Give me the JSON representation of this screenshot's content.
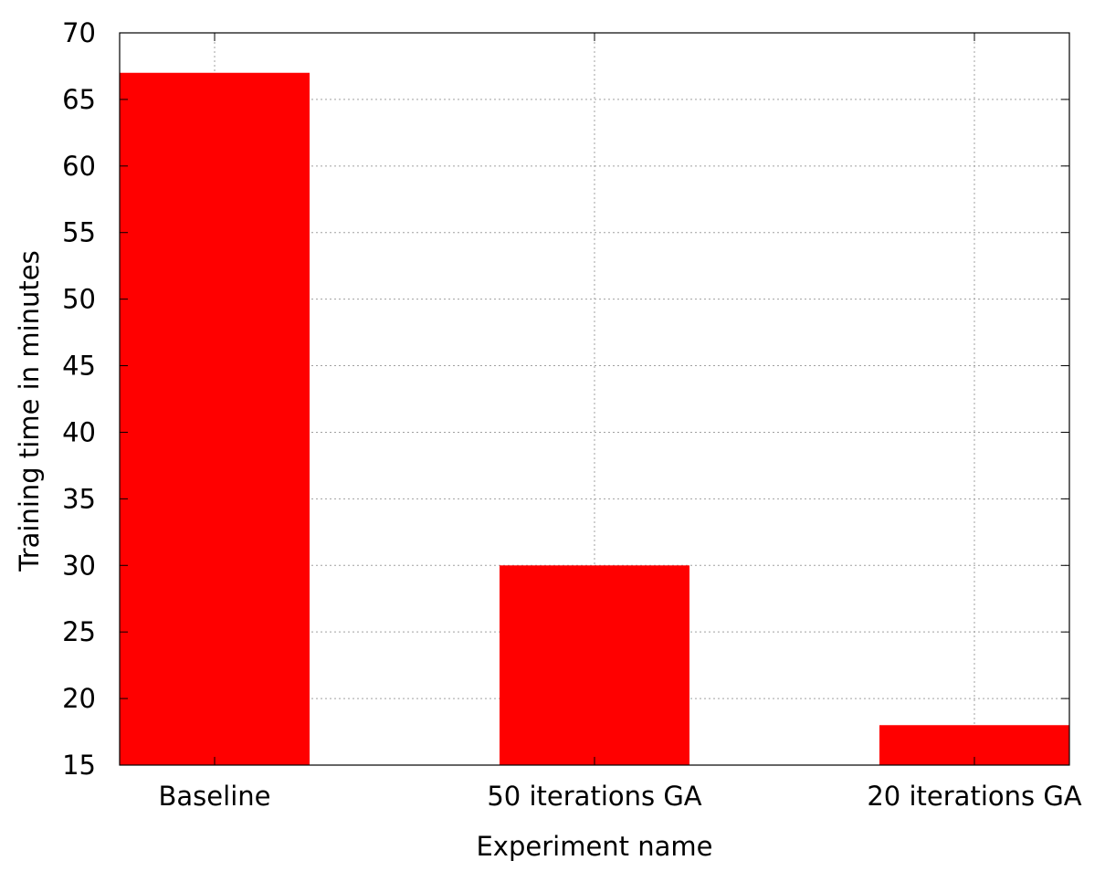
{
  "chart_data": {
    "type": "bar",
    "title": "",
    "xlabel": "Experiment name",
    "ylabel": "Training time in minutes",
    "categories": [
      "Baseline",
      "50 iterations GA",
      "20 iterations GA"
    ],
    "series": [
      {
        "values": [
          67,
          30,
          18
        ]
      }
    ],
    "ylim": [
      15,
      70
    ],
    "yticks": [
      15,
      20,
      25,
      30,
      35,
      40,
      45,
      50,
      55,
      60,
      65,
      70
    ],
    "grid": true,
    "legend": "none",
    "colors": {
      "bar": "#ff0000",
      "grid": "#a0a0a0",
      "axis": "#000000"
    }
  }
}
